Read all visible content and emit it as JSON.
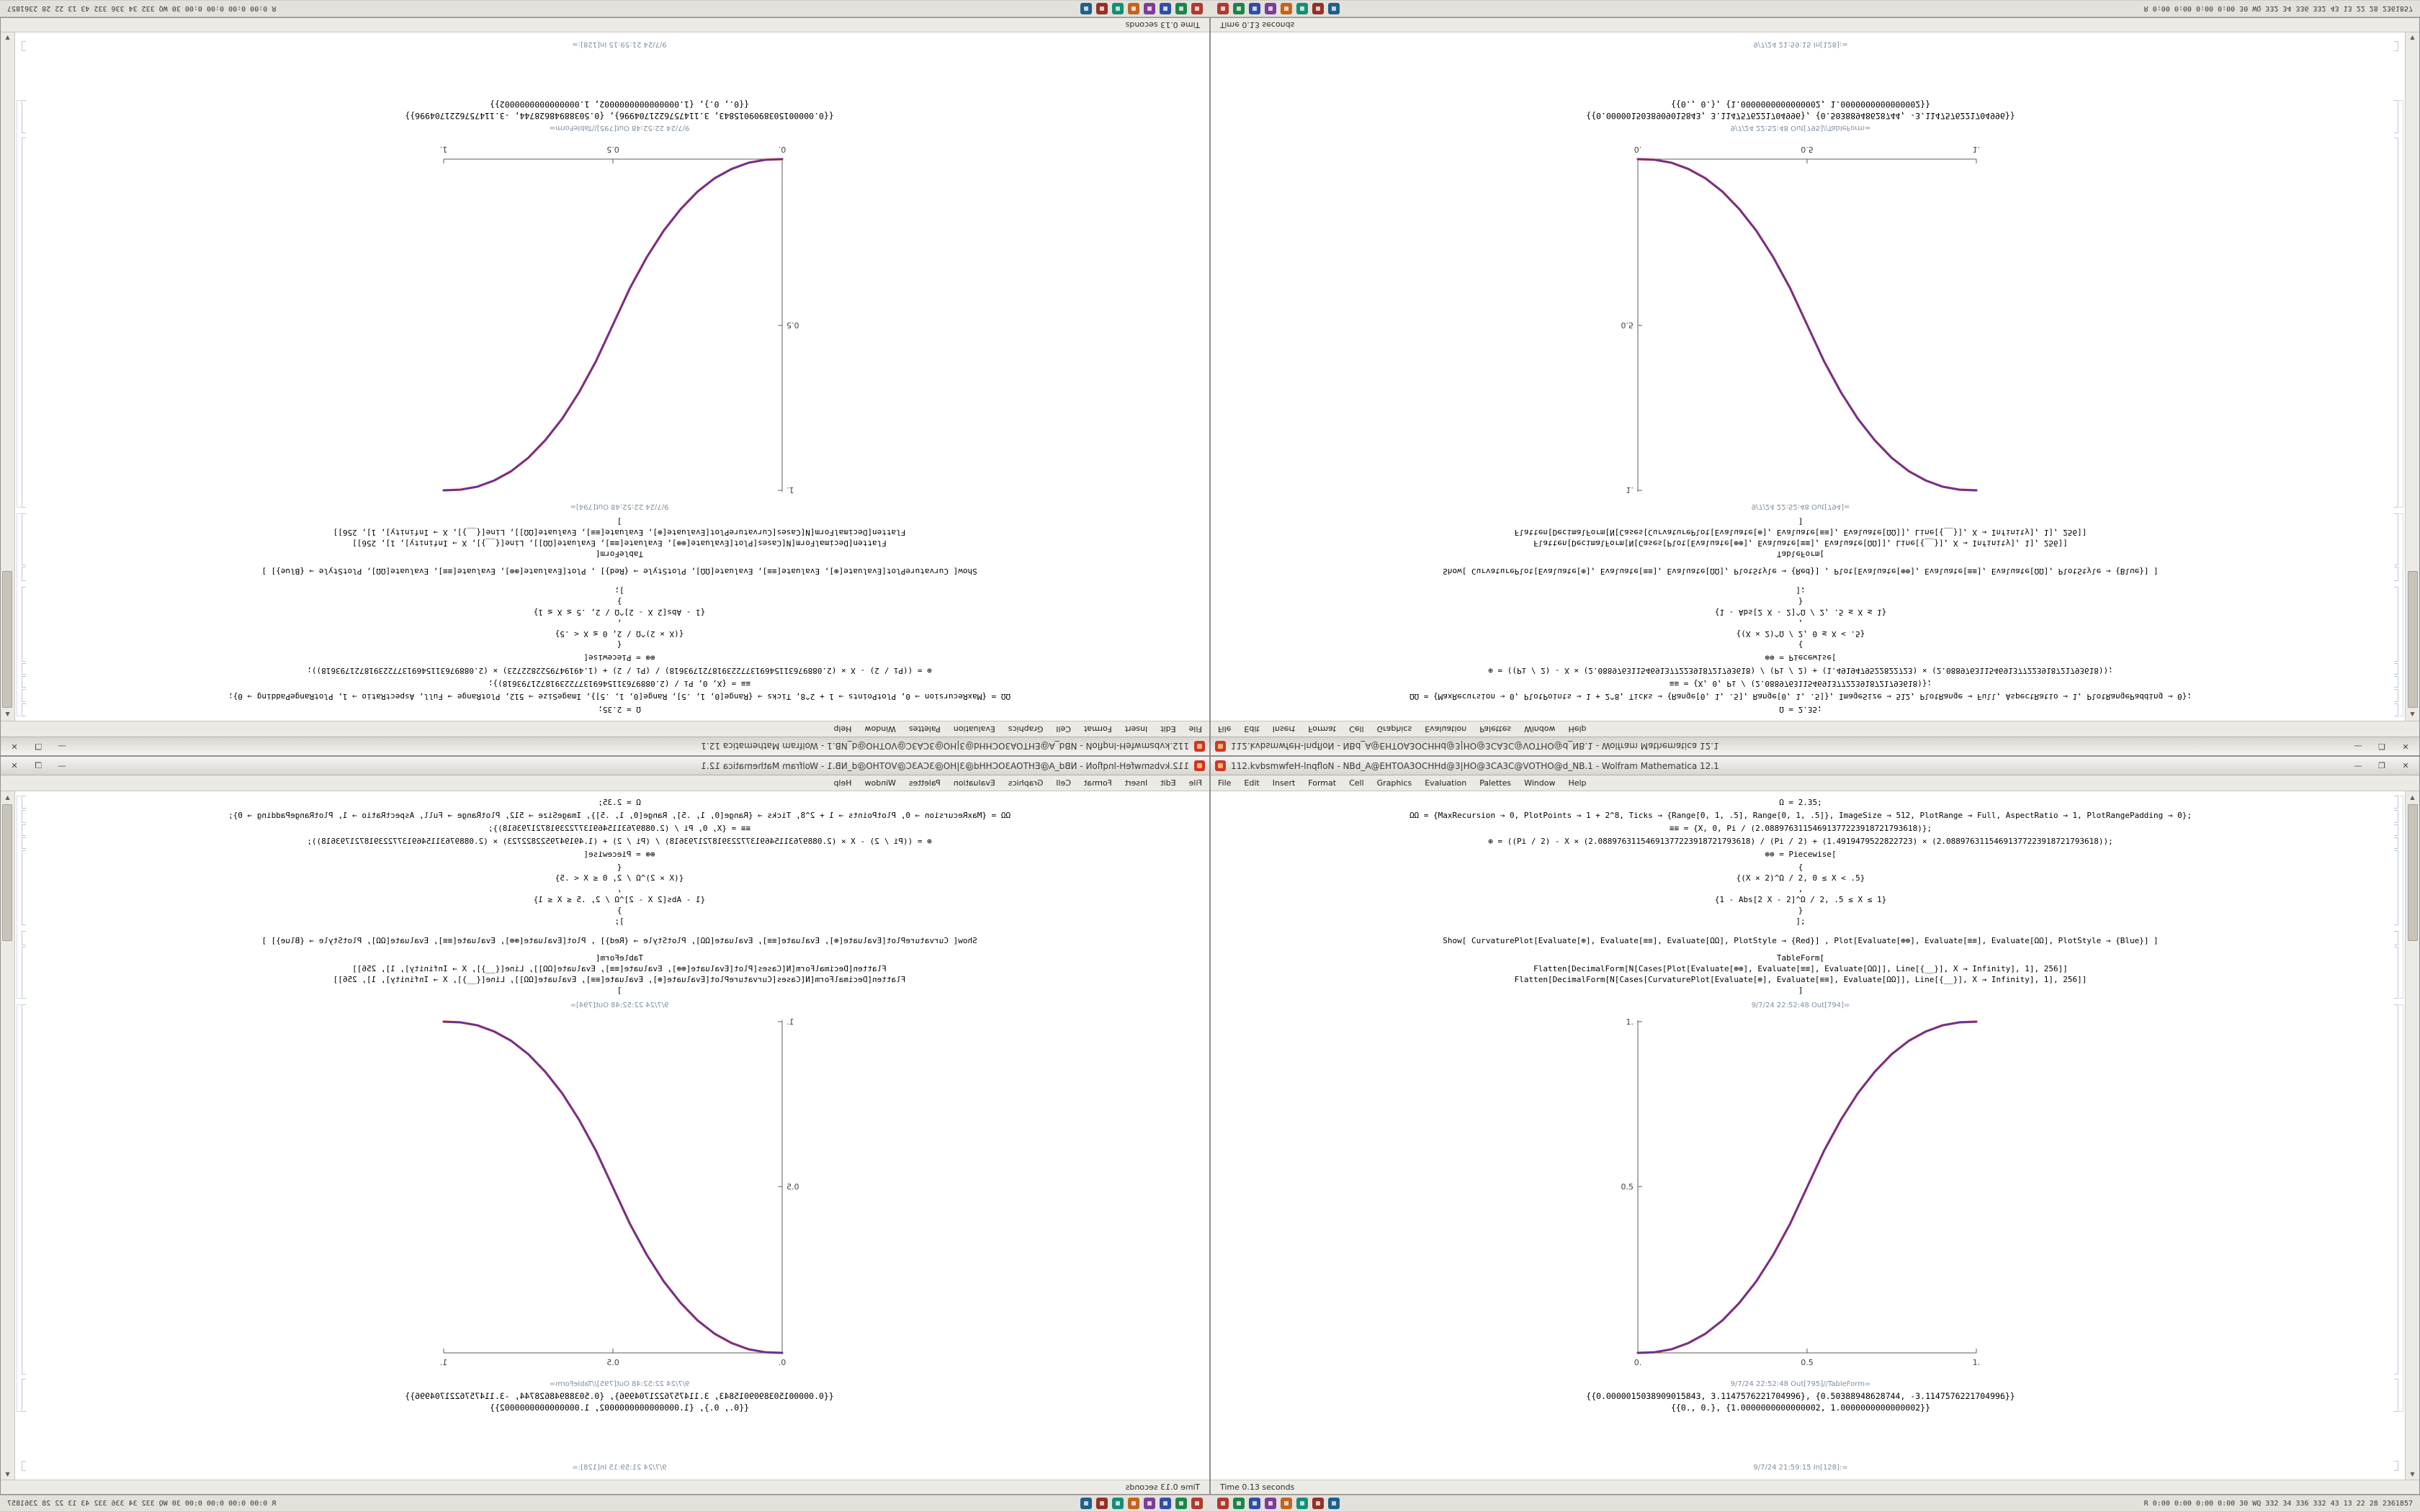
{
  "window": {
    "title": "112.kvbsmwfeH-lnqfloN - NBd_A@EHTOA3OCHHd@3|HO@3CA3C@VOTHO@d_NB.1 - Wolfram Mathematica 12.1",
    "controls": {
      "minimize": "—",
      "maximize": "❐",
      "close": "✕"
    },
    "menu": {
      "items": [
        "File",
        "Edit",
        "Insert",
        "Format",
        "Cell",
        "Graphics",
        "Evaluation",
        "Palettes",
        "Window",
        "Help"
      ]
    },
    "footer_status": "Time 0.13 seconds",
    "scroll": {
      "up": "▲",
      "down": "▼"
    }
  },
  "notebook": {
    "code": [
      "Ω = 2.35;",
      "ΩΩ = {MaxRecursion → 0, PlotPoints → 1 + 2^8, Ticks → {Range[0, 1, .5], Range[0, 1, .5]}, ImageSize → 512, PlotRange → Full, AspectRatio → 1, PlotRangePadding → 0};",
      "≡≡ = {X, 0, Pi / (2.08897631154691377223918721793618)};",
      "⊕ = ((Pi / 2) - X × (2.08897631154691377223918721793618) / (Pi / 2) + (1.4919479522822723) × (2.08897631154691377223918721793618));",
      "⊕⊕ = Piecewise[",
      "{",
      "{(X × 2)^Ω / 2, 0 ≤ X < .5}",
      ",",
      "{1 - Abs[2 X - 2]^Ω / 2, .5 ≤ X ≤ 1}",
      "}",
      "];",
      "Show[ CurvaturePlot[Evaluate[⊕], Evaluate[≡≡], Evaluate[ΩΩ], PlotStyle → {Red}] , Plot[Evaluate[⊕⊕], Evaluate[≡≡], Evaluate[ΩΩ], PlotStyle → {Blue}] ]",
      "TableForm[",
      "Flatten[DecimalForm[N[Cases[Plot[Evaluate[⊕⊕], Evaluate[≡≡], Evaluate[ΩΩ]], Line[{__}], X → Infinity], 1], 256]]",
      "Flatten[DecimalForm[N[Cases[CurvaturePlot[Evaluate[⊕], Evaluate[≡≡], Evaluate[ΩΩ]], Line[{__}], X → Infinity], 1], 256]]",
      "]"
    ],
    "out_plot_label": "9/7/24 22:52:48 Out[794]=",
    "out_table_label": "9/7/24 22:52:48 Out[795]//TableForm=",
    "out_lines": [
      "{{0.0000015038909015843, 3.1147576221704996}, {0.50388948628744, -3.1147576221704996}}",
      "{{0., 0.}, {1.0000000000000002, 1.0000000000000002}}"
    ],
    "next_in_label": "9/7/24 21:59:15 In[128]:="
  },
  "chart_data": {
    "type": "line",
    "title": "",
    "xlabel": "",
    "ylabel": "",
    "xlim": [
      0,
      1
    ],
    "ylim": [
      0,
      1
    ],
    "grid": false,
    "legend": "none",
    "xticks": [
      "0.",
      "0.5",
      "1."
    ],
    "yticks": [
      "0.5",
      "1."
    ],
    "x": [
      0,
      0.05,
      0.1,
      0.15,
      0.2,
      0.25,
      0.3,
      0.35,
      0.4,
      0.45,
      0.5,
      0.55,
      0.6,
      0.65,
      0.7,
      0.75,
      0.8,
      0.85,
      0.9,
      0.95,
      1
    ],
    "series": [
      {
        "name": "CurvaturePlot (Red)",
        "color": "#c43041",
        "values": [
          0,
          0.002,
          0.011,
          0.03,
          0.058,
          0.098,
          0.151,
          0.216,
          0.296,
          0.39,
          0.5,
          0.61,
          0.704,
          0.784,
          0.849,
          0.902,
          0.942,
          0.97,
          0.989,
          0.998,
          1
        ]
      },
      {
        "name": "Plot (Blue)",
        "color": "#4739b2",
        "values": [
          0,
          0.002,
          0.011,
          0.03,
          0.058,
          0.098,
          0.151,
          0.216,
          0.296,
          0.39,
          0.5,
          0.61,
          0.704,
          0.784,
          0.849,
          0.902,
          0.942,
          0.97,
          0.989,
          0.998,
          1
        ]
      }
    ]
  },
  "taskbar": {
    "icon_colors": [
      "#b03a2e",
      "#1e8449",
      "#2e4fa3",
      "#7d3c98",
      "#c4641d",
      "#148f77",
      "#943126",
      "#1f618d"
    ],
    "stats": "R 0:00 0:00 0:00 0:00 30 WQ 332 34 336 332 43 13 22 28 2361857"
  }
}
